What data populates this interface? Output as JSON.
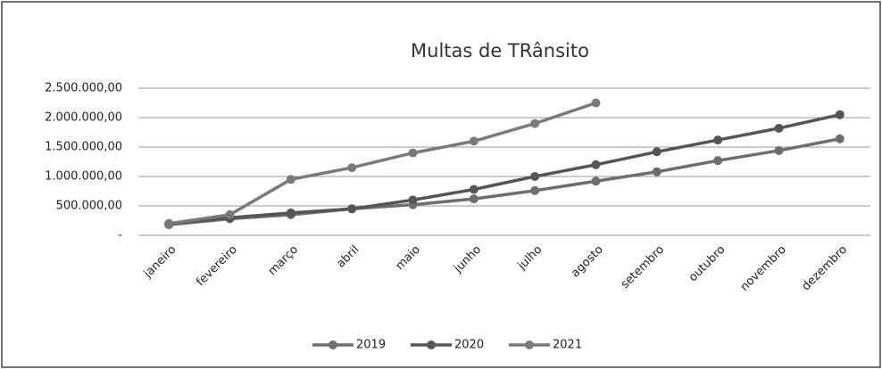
{
  "chart_data": {
    "type": "line",
    "title": "Multas de TRânsito",
    "categories": [
      "janeiro",
      "fevereiro",
      "março",
      "abril",
      "maio",
      "junho",
      "julho",
      "agosto",
      "setembro",
      "outubro",
      "novembro",
      "dezembro"
    ],
    "series": [
      {
        "name": "2019",
        "color": "#6e6e6e",
        "values": [
          180000,
          280000,
          350000,
          450000,
          520000,
          620000,
          760000,
          920000,
          1080000,
          1270000,
          1440000,
          1640000
        ]
      },
      {
        "name": "2020",
        "color": "#555555",
        "values": [
          200000,
          300000,
          380000,
          450000,
          600000,
          780000,
          1000000,
          1200000,
          1420000,
          1620000,
          1820000,
          2050000
        ]
      },
      {
        "name": "2021",
        "color": "#7a7a7a",
        "values": [
          200000,
          350000,
          950000,
          1150000,
          1400000,
          1600000,
          1900000,
          2250000,
          null,
          null,
          null,
          null
        ]
      }
    ],
    "ylim": [
      0,
      2500000
    ],
    "yticks": [
      {
        "value": 0,
        "label": "-"
      },
      {
        "value": 500000,
        "label": "500.000,00"
      },
      {
        "value": 1000000,
        "label": "1.000.000,00"
      },
      {
        "value": 1500000,
        "label": "1.500.000,00"
      },
      {
        "value": 2000000,
        "label": "2.000.000,00"
      },
      {
        "value": 2500000,
        "label": "2.500.000,00"
      }
    ],
    "grid": true,
    "legend": "bottom"
  }
}
